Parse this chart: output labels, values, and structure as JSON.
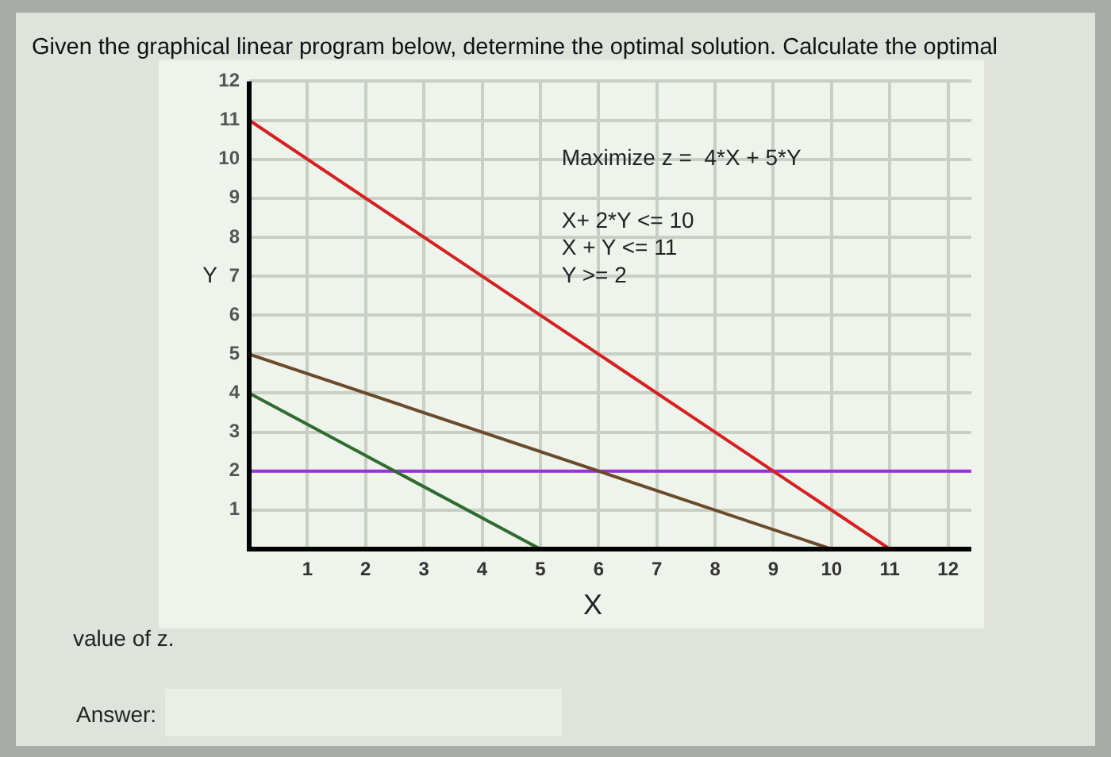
{
  "chart_data": {
    "type": "line",
    "title": "Given the graphical linear program below, determine the optimal solution.  Calculate the optimal",
    "xlabel": "X",
    "ylabel": "Y",
    "xlim": [
      0,
      12.4
    ],
    "ylim": [
      0,
      12
    ],
    "xticks": [
      1,
      2,
      3,
      4,
      5,
      6,
      7,
      8,
      9,
      10,
      11,
      12
    ],
    "yticks": [
      1,
      2,
      3,
      4,
      5,
      6,
      7,
      8,
      9,
      10,
      11,
      12
    ],
    "grid": true,
    "legend": false,
    "marker": "none",
    "line_style": "solid",
    "series": [
      {
        "color": "#d62020",
        "x": [
          0,
          11
        ],
        "values": [
          11,
          0
        ]
      },
      {
        "color": "#6b4a2a",
        "x": [
          0,
          10
        ],
        "values": [
          5,
          0
        ]
      },
      {
        "color": "#2f6b2f",
        "x": [
          0,
          5
        ],
        "values": [
          4,
          0
        ]
      },
      {
        "color": "#9b30e0",
        "x": [
          0,
          12.4
        ],
        "values": [
          2,
          2
        ]
      }
    ],
    "annotations": [
      "Maximize z =  4*X + 5*Y",
      "X+ 2*Y <= 10",
      "X + Y <= 11",
      "Y >= 2",
      "value of z.",
      "Answer:"
    ]
  }
}
